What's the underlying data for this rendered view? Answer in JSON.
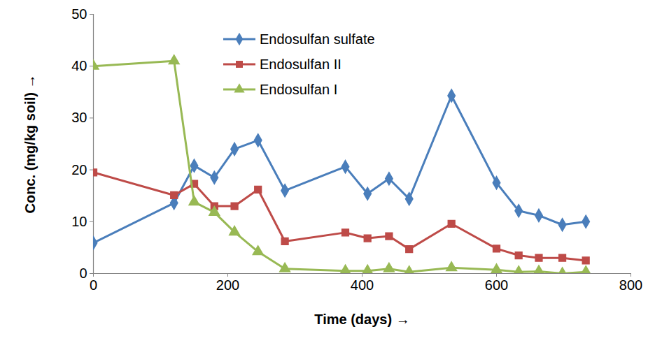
{
  "chart_data": {
    "type": "line",
    "x_label": "Time (days)",
    "y_label": "Conc. (mg/kg soil)",
    "x": [
      0,
      120,
      150,
      180,
      210,
      245,
      285,
      375,
      408,
      440,
      470,
      533,
      600,
      633,
      663,
      698,
      733
    ],
    "series": [
      {
        "name": "Endosulfan sulfate",
        "color": "#4a7ebb",
        "marker": "diamond",
        "values": [
          5.9,
          13.6,
          20.8,
          18.5,
          24,
          25.7,
          16,
          20.6,
          15.4,
          18.3,
          14.4,
          34.3,
          17.5,
          12.1,
          11.2,
          9.4,
          10
        ]
      },
      {
        "name": "Endosulfan II",
        "color": "#be4b48",
        "marker": "square",
        "values": [
          19.5,
          15.1,
          17.3,
          13,
          13,
          16.2,
          6.2,
          7.9,
          6.8,
          7.2,
          4.7,
          9.6,
          4.8,
          3.5,
          3,
          3,
          2.5
        ]
      },
      {
        "name": "Endosulfan I",
        "color": "#98b954",
        "marker": "triangle",
        "values": [
          40,
          41,
          13.8,
          11.8,
          8,
          4.2,
          0.9,
          0.5,
          0.5,
          0.9,
          0.3,
          1.1,
          0.7,
          0.3,
          0.4,
          0,
          0.3
        ]
      }
    ],
    "xlim": [
      0,
      800
    ],
    "xticks": [
      0,
      200,
      400,
      600,
      800
    ],
    "ylim": [
      0,
      50
    ],
    "yticks": [
      0,
      10,
      20,
      30,
      40,
      50
    ],
    "grid": false,
    "legend": "top"
  }
}
